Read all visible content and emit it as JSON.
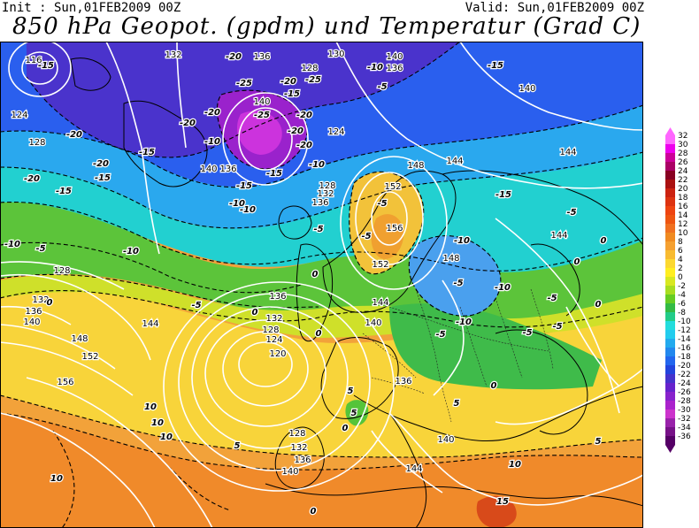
{
  "header": {
    "init": "Init : Sun,01FEB2009 00Z",
    "valid": "Valid: Sun,01FEB2009 00Z",
    "title": "850 hPa Geopot. (gpdm) und Temperatur (Grad C)"
  },
  "legend": {
    "levels": [
      "32",
      "30",
      "28",
      "26",
      "24",
      "22",
      "20",
      "18",
      "16",
      "14",
      "12",
      "10",
      "8",
      "6",
      "4",
      "2",
      "0",
      "-2",
      "-4",
      "-6",
      "-8",
      "-10",
      "-12",
      "-14",
      "-16",
      "-18",
      "-20",
      "-22",
      "-24",
      "-26",
      "-28",
      "-30",
      "-32",
      "-34",
      "-36"
    ],
    "colors": [
      "#ff66ff",
      "#ee00ee",
      "#cc0099",
      "#aa0066",
      "#880022",
      "#aa1111",
      "#cc2211",
      "#dd3311",
      "#ee4411",
      "#ee5511",
      "#f07020",
      "#f08a20",
      "#f5a030",
      "#f8bb30",
      "#fcd830",
      "#ffee20",
      "#d8e820",
      "#a8dd20",
      "#66cc22",
      "#33bb44",
      "#22cc88",
      "#22dddd",
      "#22ccee",
      "#22aaee",
      "#2288ee",
      "#2266ee",
      "#2244dd",
      "#4433cc",
      "#6622cc",
      "#8822cc",
      "#aa22cc",
      "#cc33cc",
      "#9922aa",
      "#771188",
      "#550066"
    ]
  },
  "geopotential_labels": [
    "116",
    "132",
    "136",
    "128",
    "130",
    "140",
    "136",
    "124",
    "128",
    "124",
    "140",
    "140",
    "136",
    "128",
    "132",
    "136",
    "148",
    "144",
    "152",
    "156",
    "152",
    "148",
    "144",
    "140",
    "144",
    "132",
    "136",
    "140",
    "128",
    "144",
    "148",
    "152",
    "156",
    "136",
    "132",
    "128",
    "124",
    "120",
    "144",
    "140",
    "136",
    "128",
    "132",
    "136",
    "140",
    "144",
    "140"
  ],
  "temperature_labels": [
    "-15",
    "-20",
    "-25",
    "-20",
    "-25",
    "-20",
    "-15",
    "-20",
    "-10",
    "-10",
    "-20",
    "-15",
    "-25",
    "-20",
    "-20",
    "-15",
    "-15",
    "-20",
    "-15",
    "-15",
    "-20",
    "-20",
    "-10",
    "-15",
    "-10",
    "-5",
    "-10",
    "-10",
    "-5",
    "-5",
    "-10",
    "-15",
    "-10",
    "-5",
    "-5",
    "-10",
    "-10",
    "-5",
    "-5",
    "0",
    "0",
    "-5",
    "-5",
    "-5",
    "-5",
    "0",
    "-5",
    "0",
    "0",
    "5",
    "5",
    "5",
    "5",
    "10",
    "10",
    "10",
    "15",
    "10",
    "10",
    "0",
    "5",
    "0",
    "0",
    "0",
    "0"
  ]
}
